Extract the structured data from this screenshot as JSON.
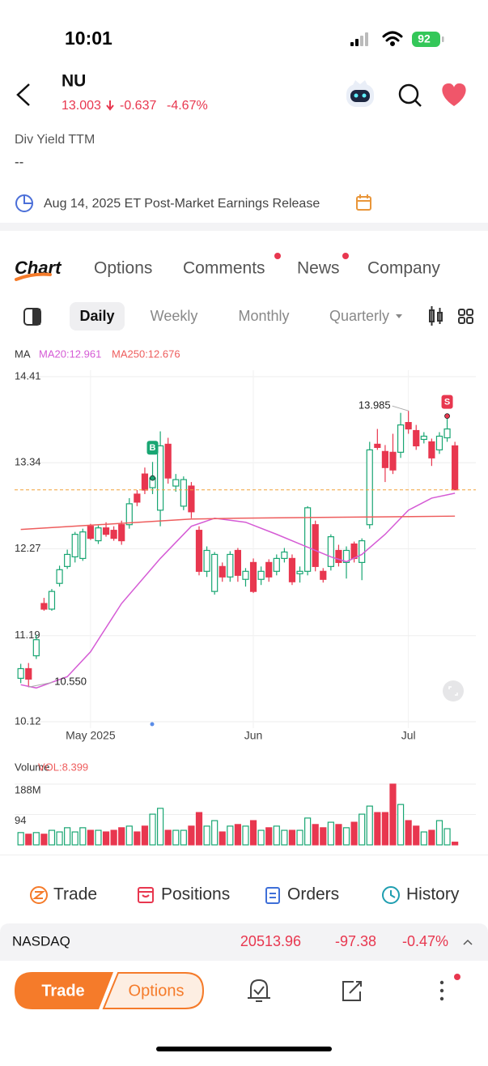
{
  "status_bar": {
    "time": "10:01",
    "battery": "92"
  },
  "header": {
    "symbol": "NU",
    "price": "13.003",
    "change": "-0.637",
    "change_pct": "-4.67%"
  },
  "div_yield": {
    "label": "Div Yield TTM",
    "value": "--"
  },
  "earnings": "Aug 14, 2025 ET Post-Market Earnings Release",
  "tabs": [
    "Chart",
    "Options",
    "Comments",
    "News",
    "Company"
  ],
  "periods": [
    "Daily",
    "Weekly",
    "Monthly",
    "Quarterly"
  ],
  "chart_data": [
    {
      "type": "candlestick",
      "indicator_label": "MA",
      "up_color": "#19a673",
      "down_color": "#e8374f",
      "xlim": [
        -0.8,
        58.7
      ],
      "xticks": [
        {
          "value": 9,
          "label": "May 2025"
        },
        {
          "value": 30,
          "label": "Jun"
        },
        {
          "value": 50,
          "label": "Jul"
        }
      ],
      "ylim": [
        10.12,
        14.41
      ],
      "yticks": [
        14.41,
        13.34,
        12.27,
        11.19,
        10.12
      ],
      "grid": true,
      "open": [
        10.66,
        10.78,
        10.94,
        11.59,
        11.52,
        11.84,
        12.05,
        12.17,
        12.15,
        12.55,
        12.37,
        12.53,
        12.5,
        12.57,
        12.57,
        12.95,
        13.2,
        13.03,
        12.75,
        13.57,
        13.05,
        12.8,
        13.05,
        12.5,
        11.99,
        11.74,
        12.05,
        11.92,
        12.25,
        11.89,
        12.1,
        11.89,
        12.1,
        11.99,
        12.15,
        12.15,
        11.96,
        11.99,
        12.57,
        11.99,
        12.05,
        12.25,
        12.1,
        12.33,
        12.1,
        12.57,
        13.57,
        13.48,
        13.47,
        13.47,
        13.84,
        13.74,
        13.63,
        13.6,
        13.5,
        13.65,
        13.55
      ],
      "high": [
        10.84,
        10.85,
        11.2,
        11.66,
        11.77,
        12.06,
        12.26,
        12.48,
        12.52,
        12.58,
        12.56,
        12.6,
        12.55,
        12.62,
        12.9,
        13.0,
        13.28,
        13.35,
        13.73,
        13.65,
        13.2,
        13.17,
        13.1,
        12.55,
        12.3,
        12.23,
        12.1,
        12.24,
        12.28,
        12.03,
        12.15,
        12.05,
        12.14,
        12.2,
        12.28,
        12.2,
        12.05,
        12.8,
        12.62,
        12.03,
        12.45,
        12.32,
        12.3,
        12.36,
        12.4,
        13.6,
        13.76,
        13.56,
        13.7,
        13.96,
        13.985,
        13.81,
        13.72,
        13.64,
        13.72,
        13.92,
        13.6
      ],
      "low": [
        10.6,
        10.55,
        10.9,
        11.5,
        11.5,
        11.8,
        12.02,
        12.1,
        12.12,
        12.38,
        12.33,
        12.42,
        12.37,
        12.32,
        12.52,
        12.8,
        12.95,
        12.95,
        12.55,
        13.08,
        12.98,
        12.75,
        12.65,
        11.94,
        11.92,
        11.7,
        11.86,
        11.86,
        11.86,
        11.8,
        11.72,
        11.82,
        11.86,
        11.94,
        12.1,
        11.82,
        11.85,
        11.94,
        11.99,
        11.85,
        12.0,
        12.05,
        11.9,
        12.1,
        11.88,
        12.52,
        13.5,
        13.1,
        13.2,
        13.4,
        13.7,
        13.5,
        13.58,
        13.3,
        13.45,
        13.6,
        13.0
      ],
      "close": [
        10.78,
        10.65,
        11.14,
        11.52,
        11.74,
        12.01,
        12.2,
        12.45,
        12.48,
        12.4,
        12.53,
        12.45,
        12.4,
        12.37,
        12.83,
        12.85,
        13.0,
        13.15,
        13.55,
        13.15,
        13.13,
        13.13,
        12.73,
        11.99,
        12.25,
        12.2,
        11.92,
        12.2,
        11.94,
        11.99,
        11.74,
        11.99,
        11.92,
        12.15,
        12.23,
        11.86,
        11.99,
        12.78,
        12.05,
        11.89,
        12.42,
        12.1,
        12.25,
        12.15,
        12.37,
        13.5,
        13.53,
        13.28,
        13.25,
        13.81,
        13.76,
        13.55,
        13.67,
        13.4,
        13.67,
        13.76,
        13.003
      ],
      "lines": [
        {
          "name": "MA20:12.961",
          "color": "#d55bd5",
          "x": [
            0,
            2,
            6,
            9,
            13,
            18,
            22,
            25,
            29,
            33,
            36,
            40,
            42,
            44,
            47,
            50,
            53,
            56
          ],
          "values": [
            10.58,
            10.54,
            10.68,
            10.99,
            11.59,
            12.15,
            12.55,
            12.65,
            12.6,
            12.45,
            12.33,
            12.17,
            12.11,
            12.2,
            12.45,
            12.75,
            12.9,
            12.961
          ]
        },
        {
          "name": "MA250:12.676",
          "color": "#ee5d5d",
          "x": [
            0,
            22,
            28,
            56
          ],
          "values": [
            12.51,
            12.64,
            12.65,
            12.676
          ]
        }
      ],
      "annotations": [
        {
          "index": 50,
          "value": 13.985,
          "label": "13.985"
        },
        {
          "index": 1,
          "value": 10.55,
          "label": "10.550"
        }
      ],
      "signals": [
        {
          "index": 17,
          "label": "B"
        },
        {
          "index": 55,
          "label": "S"
        }
      ]
    },
    {
      "type": "bar",
      "title": "Volume",
      "subtitle": "VOL:8.399",
      "values": [
        38,
        33,
        38,
        33,
        45,
        40,
        53,
        40,
        53,
        45,
        45,
        40,
        45,
        53,
        58,
        40,
        58,
        95,
        113,
        45,
        45,
        45,
        58,
        100,
        58,
        75,
        40,
        58,
        63,
        58,
        75,
        45,
        53,
        58,
        45,
        45,
        45,
        83,
        63,
        53,
        70,
        63,
        53,
        70,
        95,
        120,
        100,
        100,
        188,
        125,
        75,
        58,
        40,
        45,
        75,
        50,
        8.399
      ],
      "ylim": [
        0,
        188
      ],
      "yticks": [
        {
          "value": 188,
          "label": "188M"
        },
        94
      ],
      "grid": true
    }
  ],
  "actions": [
    "Trade",
    "Positions",
    "Orders",
    "History"
  ],
  "index_quote": {
    "name": "NASDAQ",
    "price": "20513.96",
    "change": "-97.38",
    "change_pct": "-0.47%"
  },
  "bottom_bar": {
    "trade": "Trade",
    "options": "Options"
  }
}
